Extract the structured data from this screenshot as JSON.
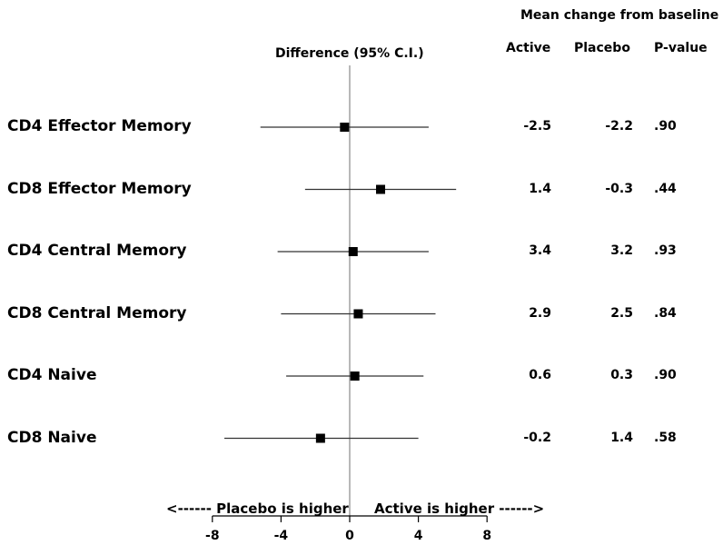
{
  "chart_data": {
    "type": "forest",
    "x_axis_title": "Difference (95% C.I.)",
    "xlim": [
      -8,
      8
    ],
    "xticks": [
      -8,
      -4,
      0,
      4,
      8
    ],
    "reference_line": 0,
    "direction_left": "<------ Placebo is higher",
    "direction_right": "Active is higher ------>",
    "table_group_header": "Mean change from baseline",
    "columns": [
      "Active",
      "Placebo",
      "P-value"
    ],
    "rows": [
      {
        "label": "CD4 Effector Memory",
        "estimate": -0.3,
        "ci": [
          -5.2,
          4.6
        ],
        "active": "-2.5",
        "placebo": "-2.2",
        "p": ".90"
      },
      {
        "label": "CD8 Effector Memory",
        "estimate": 1.8,
        "ci": [
          -2.6,
          6.2
        ],
        "active": "1.4",
        "placebo": "-0.3",
        "p": ".44"
      },
      {
        "label": "CD4 Central Memory",
        "estimate": 0.2,
        "ci": [
          -4.2,
          4.6
        ],
        "active": "3.4",
        "placebo": "3.2",
        "p": ".93"
      },
      {
        "label": "CD8 Central Memory",
        "estimate": 0.5,
        "ci": [
          -4.0,
          5.0
        ],
        "active": "2.9",
        "placebo": "2.5",
        "p": ".84"
      },
      {
        "label": "CD4 Naive",
        "estimate": 0.3,
        "ci": [
          -3.7,
          4.3
        ],
        "active": "0.6",
        "placebo": "0.3",
        "p": ".90"
      },
      {
        "label": "CD8 Naive",
        "estimate": -1.7,
        "ci": [
          -7.3,
          4.0
        ],
        "active": "-0.2",
        "placebo": "1.4",
        "p": ".58"
      }
    ]
  }
}
